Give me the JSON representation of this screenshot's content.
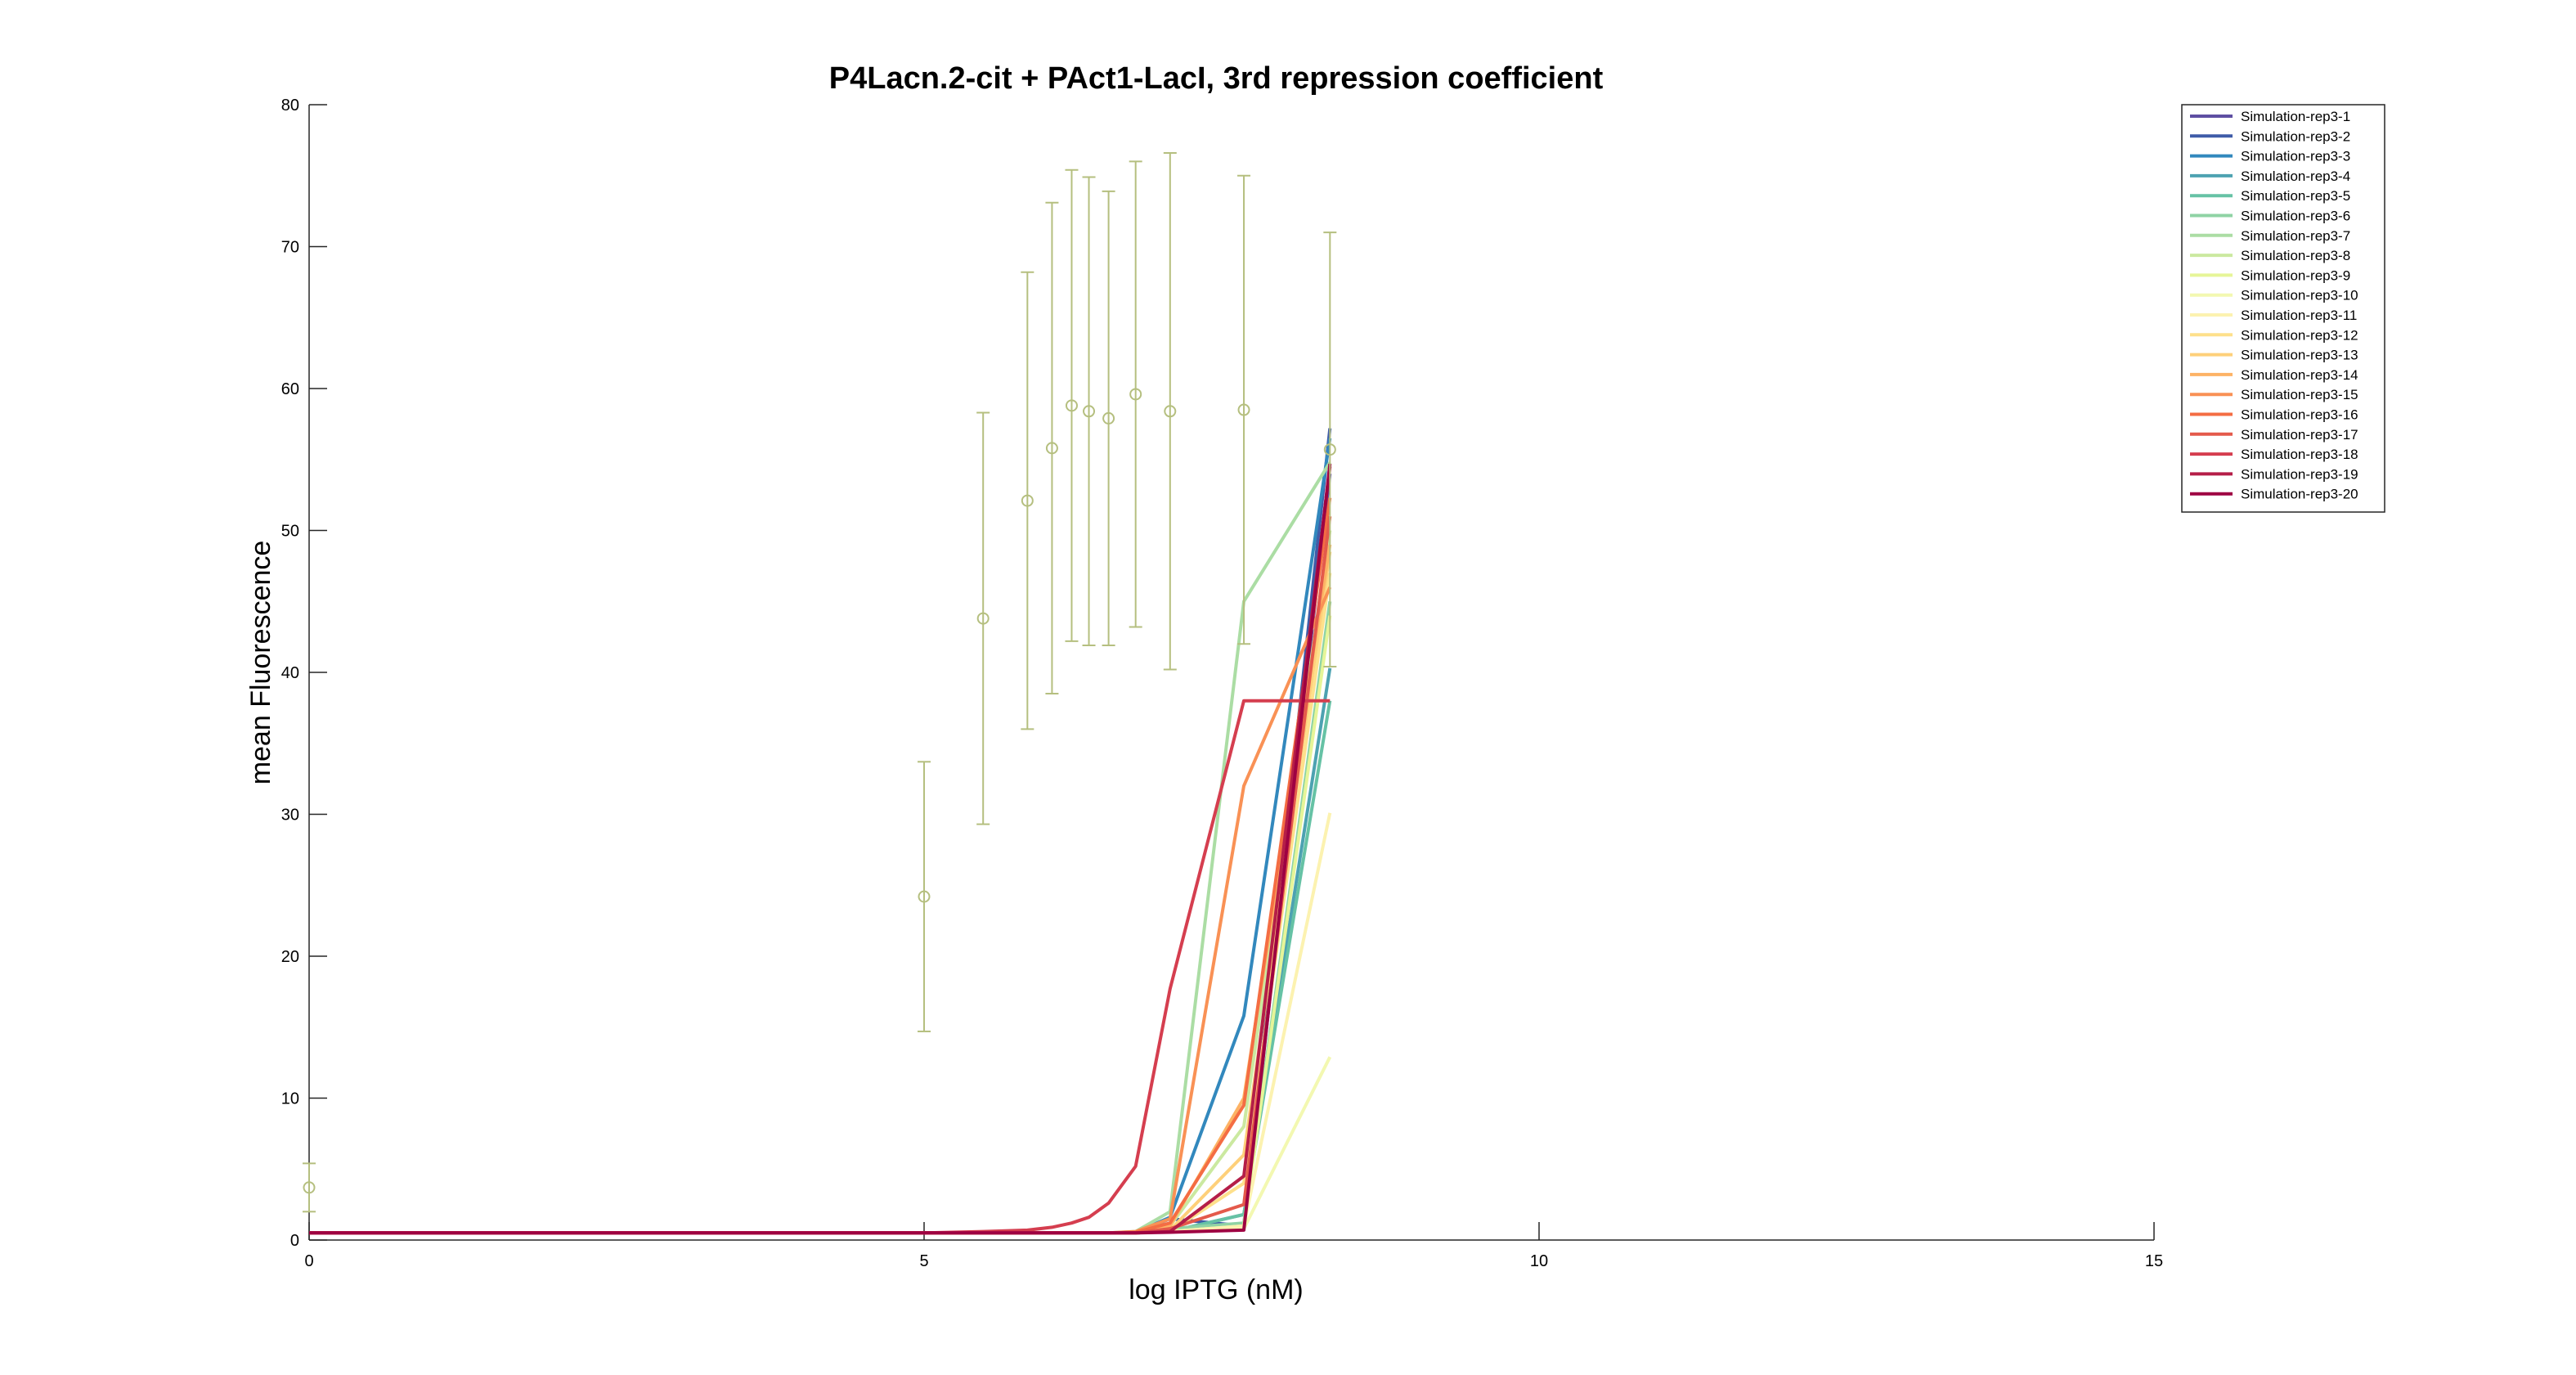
{
  "chart_data": {
    "type": "line",
    "title": "P4Lacn.2-cit + PAct1-LacI, 3rd repression coefficient",
    "xlabel": "log IPTG (nM)",
    "ylabel": "mean Fluorescence",
    "xlim": [
      0,
      15
    ],
    "ylim": [
      0,
      80
    ],
    "xticks": [
      "0",
      "5",
      "10",
      "15"
    ],
    "yticks": [
      "0",
      "10",
      "20",
      "30",
      "40",
      "50",
      "60",
      "70",
      "80"
    ],
    "grid": false,
    "legend_position": "top-right",
    "x": [
      0,
      5,
      5.48,
      5.84,
      6.04,
      6.2,
      6.34,
      6.5,
      6.72,
      7.0,
      7.6,
      8.3
    ],
    "experimental": {
      "color": "#b5bf7f",
      "x": [
        0,
        5,
        5.48,
        5.84,
        6.04,
        6.2,
        6.34,
        6.5,
        6.72,
        7.0,
        7.6,
        8.3
      ],
      "y": [
        3.7,
        24.2,
        43.8,
        52.1,
        55.8,
        58.8,
        58.4,
        57.9,
        59.6,
        58.4,
        58.5,
        55.7
      ],
      "err": [
        1.7,
        9.5,
        14.5,
        16.1,
        17.3,
        16.6,
        16.5,
        16.0,
        16.4,
        18.2,
        16.5,
        15.3
      ]
    },
    "series": [
      {
        "name": "Simulation-rep3-1",
        "color": "#5e4fa2",
        "values": [
          0.5,
          0.5,
          0.5,
          0.5,
          0.5,
          0.5,
          0.5,
          0.5,
          0.5,
          0.6,
          1.0,
          54.0
        ]
      },
      {
        "name": "Simulation-rep3-2",
        "color": "#3f5ca8",
        "values": [
          0.5,
          0.5,
          0.5,
          0.5,
          0.5,
          0.5,
          0.5,
          0.5,
          0.55,
          1.5,
          1.0,
          57.2
        ]
      },
      {
        "name": "Simulation-rep3-3",
        "color": "#3288bd",
        "values": [
          0.5,
          0.5,
          0.5,
          0.5,
          0.5,
          0.5,
          0.5,
          0.5,
          0.55,
          1.6,
          15.8,
          56.5
        ]
      },
      {
        "name": "Simulation-rep3-4",
        "color": "#4da2b1",
        "values": [
          0.5,
          0.5,
          0.5,
          0.5,
          0.5,
          0.5,
          0.5,
          0.5,
          0.5,
          0.6,
          1.8,
          40.3
        ]
      },
      {
        "name": "Simulation-rep3-5",
        "color": "#66c2a5",
        "values": [
          0.5,
          0.5,
          0.5,
          0.5,
          0.5,
          0.5,
          0.5,
          0.5,
          0.5,
          0.6,
          1.8,
          38.0
        ]
      },
      {
        "name": "Simulation-rep3-6",
        "color": "#8fd3a4",
        "values": [
          0.5,
          0.5,
          0.5,
          0.5,
          0.5,
          0.5,
          0.5,
          0.5,
          0.5,
          0.8,
          1.2,
          45.0
        ]
      },
      {
        "name": "Simulation-rep3-7",
        "color": "#abdda4",
        "values": [
          0.5,
          0.5,
          0.5,
          0.5,
          0.5,
          0.5,
          0.5,
          0.5,
          0.6,
          2.0,
          45.0,
          54.8
        ]
      },
      {
        "name": "Simulation-rep3-8",
        "color": "#cbe9a0",
        "values": [
          0.5,
          0.5,
          0.5,
          0.5,
          0.5,
          0.5,
          0.5,
          0.5,
          0.55,
          1.0,
          8.0,
          50.0
        ]
      },
      {
        "name": "Simulation-rep3-9",
        "color": "#e6f598",
        "values": [
          0.5,
          0.5,
          0.5,
          0.5,
          0.5,
          0.5,
          0.5,
          0.5,
          0.5,
          0.6,
          1.0,
          44.0
        ]
      },
      {
        "name": "Simulation-rep3-10",
        "color": "#f3f8b1",
        "values": [
          0.5,
          0.5,
          0.5,
          0.5,
          0.5,
          0.5,
          0.5,
          0.5,
          0.5,
          0.6,
          0.8,
          12.9
        ]
      },
      {
        "name": "Simulation-rep3-11",
        "color": "#fcf2b0",
        "values": [
          0.5,
          0.5,
          0.5,
          0.5,
          0.5,
          0.5,
          0.5,
          0.5,
          0.5,
          0.6,
          1.0,
          30.1
        ]
      },
      {
        "name": "Simulation-rep3-12",
        "color": "#fee08b",
        "values": [
          0.5,
          0.5,
          0.5,
          0.5,
          0.5,
          0.5,
          0.5,
          0.5,
          0.5,
          0.6,
          4.0,
          47.0
        ]
      },
      {
        "name": "Simulation-rep3-13",
        "color": "#fed07a",
        "values": [
          0.5,
          0.5,
          0.5,
          0.5,
          0.5,
          0.5,
          0.5,
          0.5,
          0.5,
          0.7,
          6.0,
          48.5
        ]
      },
      {
        "name": "Simulation-rep3-14",
        "color": "#fdb365",
        "values": [
          0.5,
          0.5,
          0.5,
          0.5,
          0.5,
          0.5,
          0.5,
          0.5,
          0.55,
          1.0,
          10.0,
          49.0
        ]
      },
      {
        "name": "Simulation-rep3-15",
        "color": "#f99155",
        "values": [
          0.5,
          0.5,
          0.5,
          0.5,
          0.5,
          0.5,
          0.5,
          0.5,
          0.6,
          1.5,
          32.0,
          46.0
        ]
      },
      {
        "name": "Simulation-rep3-16",
        "color": "#f46d43",
        "values": [
          0.5,
          0.5,
          0.5,
          0.5,
          0.5,
          0.5,
          0.5,
          0.5,
          0.55,
          1.2,
          9.5,
          52.3
        ]
      },
      {
        "name": "Simulation-rep3-17",
        "color": "#e45a4b",
        "values": [
          0.5,
          0.5,
          0.5,
          0.5,
          0.5,
          0.5,
          0.5,
          0.5,
          0.5,
          0.8,
          2.5,
          51.0
        ]
      },
      {
        "name": "Simulation-rep3-18",
        "color": "#d53e4f",
        "values": [
          0.5,
          0.5,
          0.6,
          0.7,
          0.9,
          1.2,
          1.6,
          2.6,
          5.2,
          17.7,
          38.0,
          38.0
        ]
      },
      {
        "name": "Simulation-rep3-19",
        "color": "#b51e48",
        "values": [
          0.5,
          0.5,
          0.5,
          0.5,
          0.5,
          0.5,
          0.5,
          0.5,
          0.5,
          0.6,
          4.5,
          54.5
        ]
      },
      {
        "name": "Simulation-rep3-20",
        "color": "#9e0142",
        "values": [
          0.5,
          0.5,
          0.5,
          0.5,
          0.5,
          0.5,
          0.5,
          0.5,
          0.5,
          0.55,
          0.7,
          54.7
        ]
      }
    ]
  }
}
